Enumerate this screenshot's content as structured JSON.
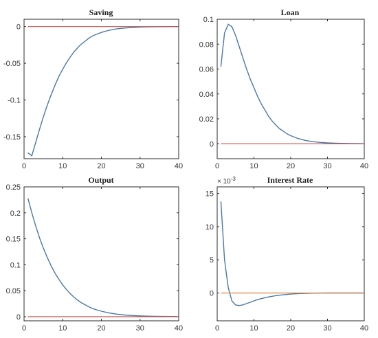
{
  "chart_data": [
    {
      "type": "line",
      "title": "Saving",
      "xlim": [
        0,
        40
      ],
      "ylim": [
        -0.18,
        0.01
      ],
      "xticks": [
        0,
        10,
        20,
        30,
        40
      ],
      "xtick_labels": [
        "0",
        "10",
        "20",
        "30",
        "40"
      ],
      "yticks": [
        0,
        -0.05,
        -0.1,
        -0.15
      ],
      "ytick_labels": [
        "0",
        "-0.05",
        "-0.1",
        "-0.15"
      ],
      "series": [
        {
          "color": "#4a78a8",
          "x": [
            1,
            2,
            3,
            4,
            5,
            6,
            7,
            8,
            9,
            10,
            11,
            12,
            13,
            14,
            15,
            16,
            17,
            18,
            19,
            20,
            22,
            24,
            26,
            28,
            30,
            32,
            34,
            36,
            38,
            40
          ],
          "y": [
            -0.172,
            -0.176,
            -0.158,
            -0.14,
            -0.123,
            -0.107,
            -0.093,
            -0.08,
            -0.068,
            -0.058,
            -0.049,
            -0.041,
            -0.034,
            -0.028,
            -0.023,
            -0.019,
            -0.015,
            -0.012,
            -0.01,
            -0.008,
            -0.005,
            -0.003,
            -0.002,
            -0.0012,
            -0.0007,
            -0.0004,
            -0.0002,
            -0.0001,
            0,
            0
          ]
        },
        {
          "color": "#c0504d",
          "x": [
            1,
            40
          ],
          "y": [
            0,
            0
          ]
        }
      ]
    },
    {
      "type": "line",
      "title": "Loan",
      "xlim": [
        0,
        40
      ],
      "ylim": [
        -0.012,
        0.1
      ],
      "xticks": [
        0,
        10,
        20,
        30,
        40
      ],
      "xtick_labels": [
        "0",
        "10",
        "20",
        "30",
        "40"
      ],
      "yticks": [
        0,
        0.02,
        0.04,
        0.06,
        0.08,
        0.1
      ],
      "ytick_labels": [
        "0",
        "0.02",
        "0.04",
        "0.06",
        "0.08",
        "0.1"
      ],
      "series": [
        {
          "color": "#4a78a8",
          "x": [
            1,
            2,
            3,
            4,
            5,
            6,
            7,
            8,
            9,
            10,
            11,
            12,
            13,
            14,
            15,
            16,
            17,
            18,
            19,
            20,
            22,
            24,
            26,
            28,
            30,
            32,
            34,
            36,
            38,
            40
          ],
          "y": [
            0.062,
            0.089,
            0.096,
            0.094,
            0.087,
            0.078,
            0.069,
            0.06,
            0.052,
            0.045,
            0.038,
            0.032,
            0.027,
            0.022,
            0.018,
            0.015,
            0.012,
            0.01,
            0.008,
            0.0065,
            0.0042,
            0.0027,
            0.0017,
            0.0011,
            0.0007,
            0.00045,
            0.0003,
            0.0002,
            0.0001,
            5e-05
          ]
        },
        {
          "color": "#c0504d",
          "x": [
            1,
            40
          ],
          "y": [
            0,
            0
          ]
        }
      ]
    },
    {
      "type": "line",
      "title": "Output",
      "xlim": [
        0,
        40
      ],
      "ylim": [
        -0.008,
        0.25
      ],
      "xticks": [
        0,
        10,
        20,
        30,
        40
      ],
      "xtick_labels": [
        "0",
        "10",
        "20",
        "30",
        "40"
      ],
      "yticks": [
        0,
        0.05,
        0.1,
        0.15,
        0.2,
        0.25
      ],
      "ytick_labels": [
        "0",
        "0.05",
        "0.1",
        "0.15",
        "0.2",
        "0.25"
      ],
      "series": [
        {
          "color": "#4a78a8",
          "x": [
            1,
            2,
            3,
            4,
            5,
            6,
            7,
            8,
            9,
            10,
            11,
            12,
            13,
            14,
            15,
            16,
            17,
            18,
            19,
            20,
            22,
            24,
            26,
            28,
            30,
            32,
            34,
            36,
            38,
            40
          ],
          "y": [
            0.228,
            0.2,
            0.175,
            0.152,
            0.132,
            0.114,
            0.098,
            0.084,
            0.072,
            0.061,
            0.052,
            0.044,
            0.037,
            0.031,
            0.026,
            0.022,
            0.018,
            0.015,
            0.0125,
            0.0105,
            0.0072,
            0.0049,
            0.0033,
            0.0022,
            0.0015,
            0.001,
            0.0007,
            0.0005,
            0.0003,
            0.0002
          ]
        },
        {
          "color": "#c0504d",
          "x": [
            1,
            40
          ],
          "y": [
            0,
            0
          ]
        }
      ]
    },
    {
      "type": "line",
      "title": "Interest Rate",
      "y_exponent_label": "× 10",
      "y_exponent_power": "-3",
      "xlim": [
        0,
        40
      ],
      "ylim": [
        -4.2,
        16
      ],
      "xticks": [
        0,
        10,
        20,
        30,
        40
      ],
      "xtick_labels": [
        "0",
        "10",
        "20",
        "30",
        "40"
      ],
      "yticks": [
        0,
        5,
        10,
        15
      ],
      "ytick_labels": [
        "0",
        "5",
        "10",
        "15"
      ],
      "series": [
        {
          "color": "#4a78a8",
          "x": [
            1,
            2,
            3,
            4,
            5,
            6,
            7,
            8,
            9,
            10,
            11,
            12,
            14,
            16,
            18,
            20,
            22,
            24,
            26,
            28,
            30,
            32,
            34,
            36,
            38,
            40
          ],
          "y": [
            13.8,
            5.0,
            0.8,
            -1.2,
            -1.8,
            -1.9,
            -1.8,
            -1.6,
            -1.4,
            -1.2,
            -1.0,
            -0.85,
            -0.6,
            -0.4,
            -0.27,
            -0.17,
            -0.1,
            -0.06,
            -0.03,
            -0.015,
            -0.008,
            -0.004,
            -0.002,
            -0.001,
            0,
            0
          ]
        },
        {
          "color": "#e0803a",
          "x": [
            1,
            40
          ],
          "y": [
            0,
            0
          ]
        }
      ]
    }
  ]
}
